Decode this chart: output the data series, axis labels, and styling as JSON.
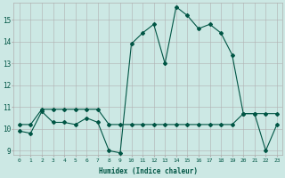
{
  "xlabel": "Humidex (Indice chaleur)",
  "ylabel": "",
  "background_color": "#cce8e4",
  "grid_color": "#b0b0b0",
  "line_color1": "#005544",
  "line_color2": "#005544",
  "xlim": [
    -0.5,
    23.5
  ],
  "ylim": [
    8.8,
    15.8
  ],
  "yticks": [
    9,
    10,
    11,
    12,
    13,
    14,
    15
  ],
  "xticks": [
    0,
    1,
    2,
    3,
    4,
    5,
    6,
    7,
    8,
    9,
    10,
    11,
    12,
    13,
    14,
    15,
    16,
    17,
    18,
    19,
    20,
    21,
    22,
    23
  ],
  "series1_x": [
    0,
    1,
    2,
    3,
    4,
    5,
    6,
    7,
    8,
    9,
    10,
    11,
    12,
    13,
    14,
    15,
    16,
    17,
    18,
    19,
    20,
    21,
    22,
    23
  ],
  "series1_y": [
    9.9,
    9.8,
    10.8,
    10.3,
    10.3,
    10.2,
    10.5,
    10.3,
    9.0,
    8.9,
    13.9,
    14.4,
    14.8,
    13.0,
    15.6,
    15.2,
    14.6,
    14.8,
    14.4,
    13.4,
    10.7,
    10.7,
    9.0,
    10.2
  ],
  "series2_x": [
    0,
    1,
    2,
    3,
    4,
    5,
    6,
    7,
    8,
    9,
    10,
    11,
    12,
    13,
    14,
    15,
    16,
    17,
    18,
    19,
    20,
    21,
    22,
    23
  ],
  "series2_y": [
    10.2,
    10.2,
    10.9,
    10.9,
    10.9,
    10.9,
    10.9,
    10.9,
    10.2,
    10.2,
    10.2,
    10.2,
    10.2,
    10.2,
    10.2,
    10.2,
    10.2,
    10.2,
    10.2,
    10.2,
    10.7,
    10.7,
    10.7,
    10.7
  ]
}
